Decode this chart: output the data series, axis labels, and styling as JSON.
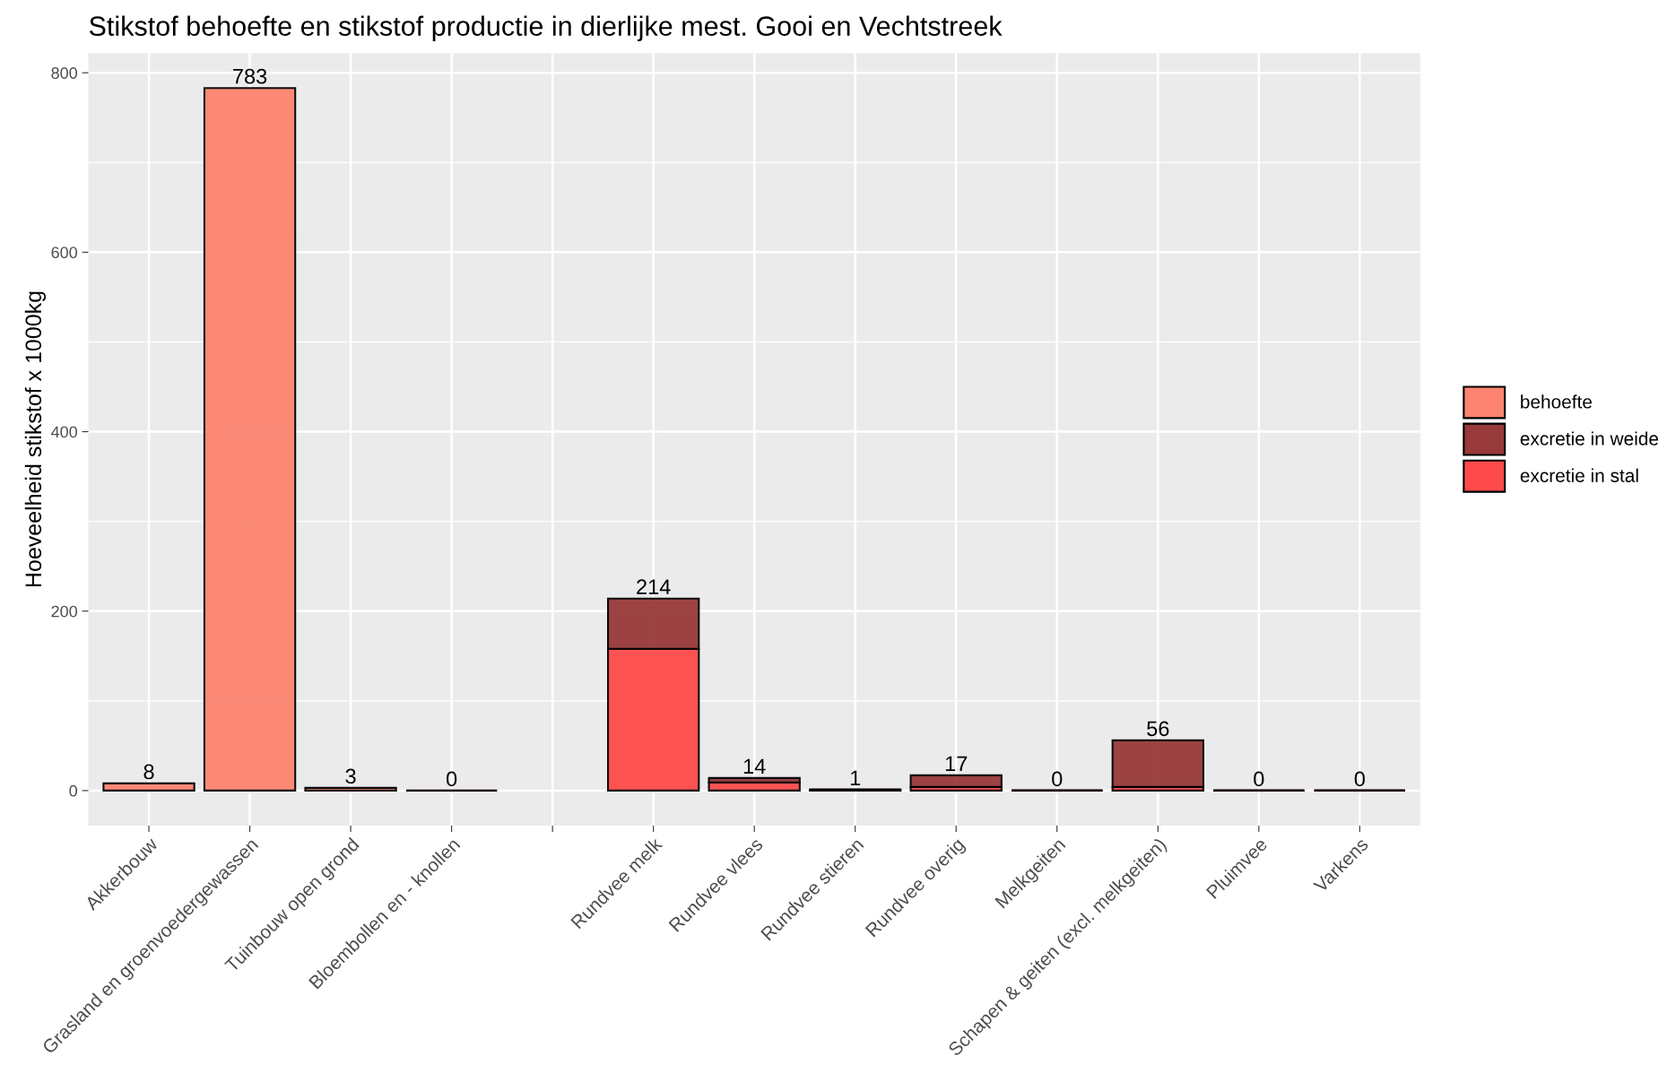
{
  "chart_data": {
    "type": "bar",
    "stacked": true,
    "title": "Stikstof behoefte en stikstof productie in dierlijke mest. Gooi en Vechtstreek",
    "ylabel": "Hoeveelheid stikstof x 1000kg",
    "categories": [
      "Akkerbouw",
      "Grasland en groenvoedergewassen",
      "Tuinbouw open grond",
      "Bloembollen en - knollen",
      null,
      "Rundvee melk",
      "Rundvee vlees",
      "Rundvee stieren",
      "Rundvee overig",
      "Melkgeiten",
      "Schapen & geiten (excl. melkgeiten)",
      "Pluimvee",
      "Varkens"
    ],
    "series": [
      {
        "name": "excretie in stal",
        "color": "#fd4a4a",
        "values": [
          null,
          null,
          null,
          null,
          null,
          158,
          9,
          1,
          4,
          0,
          4,
          0,
          0
        ]
      },
      {
        "name": "excretie in weide",
        "color": "#983a3a",
        "values": [
          null,
          null,
          null,
          null,
          null,
          56,
          5,
          0,
          13,
          0,
          52,
          0,
          0
        ]
      },
      {
        "name": "behoefte",
        "color": "#fc8470",
        "values": [
          8,
          783,
          3,
          0,
          null,
          null,
          null,
          null,
          null,
          null,
          null,
          null,
          null
        ]
      }
    ],
    "totals": [
      "8",
      "783",
      "3",
      "0",
      null,
      "214",
      "14",
      "1",
      "17",
      "0",
      "56",
      "0",
      "0"
    ],
    "ylim": [
      -39,
      822
    ],
    "yticks": [
      0,
      200,
      400,
      600,
      800
    ],
    "grid": true,
    "legend": "right"
  }
}
